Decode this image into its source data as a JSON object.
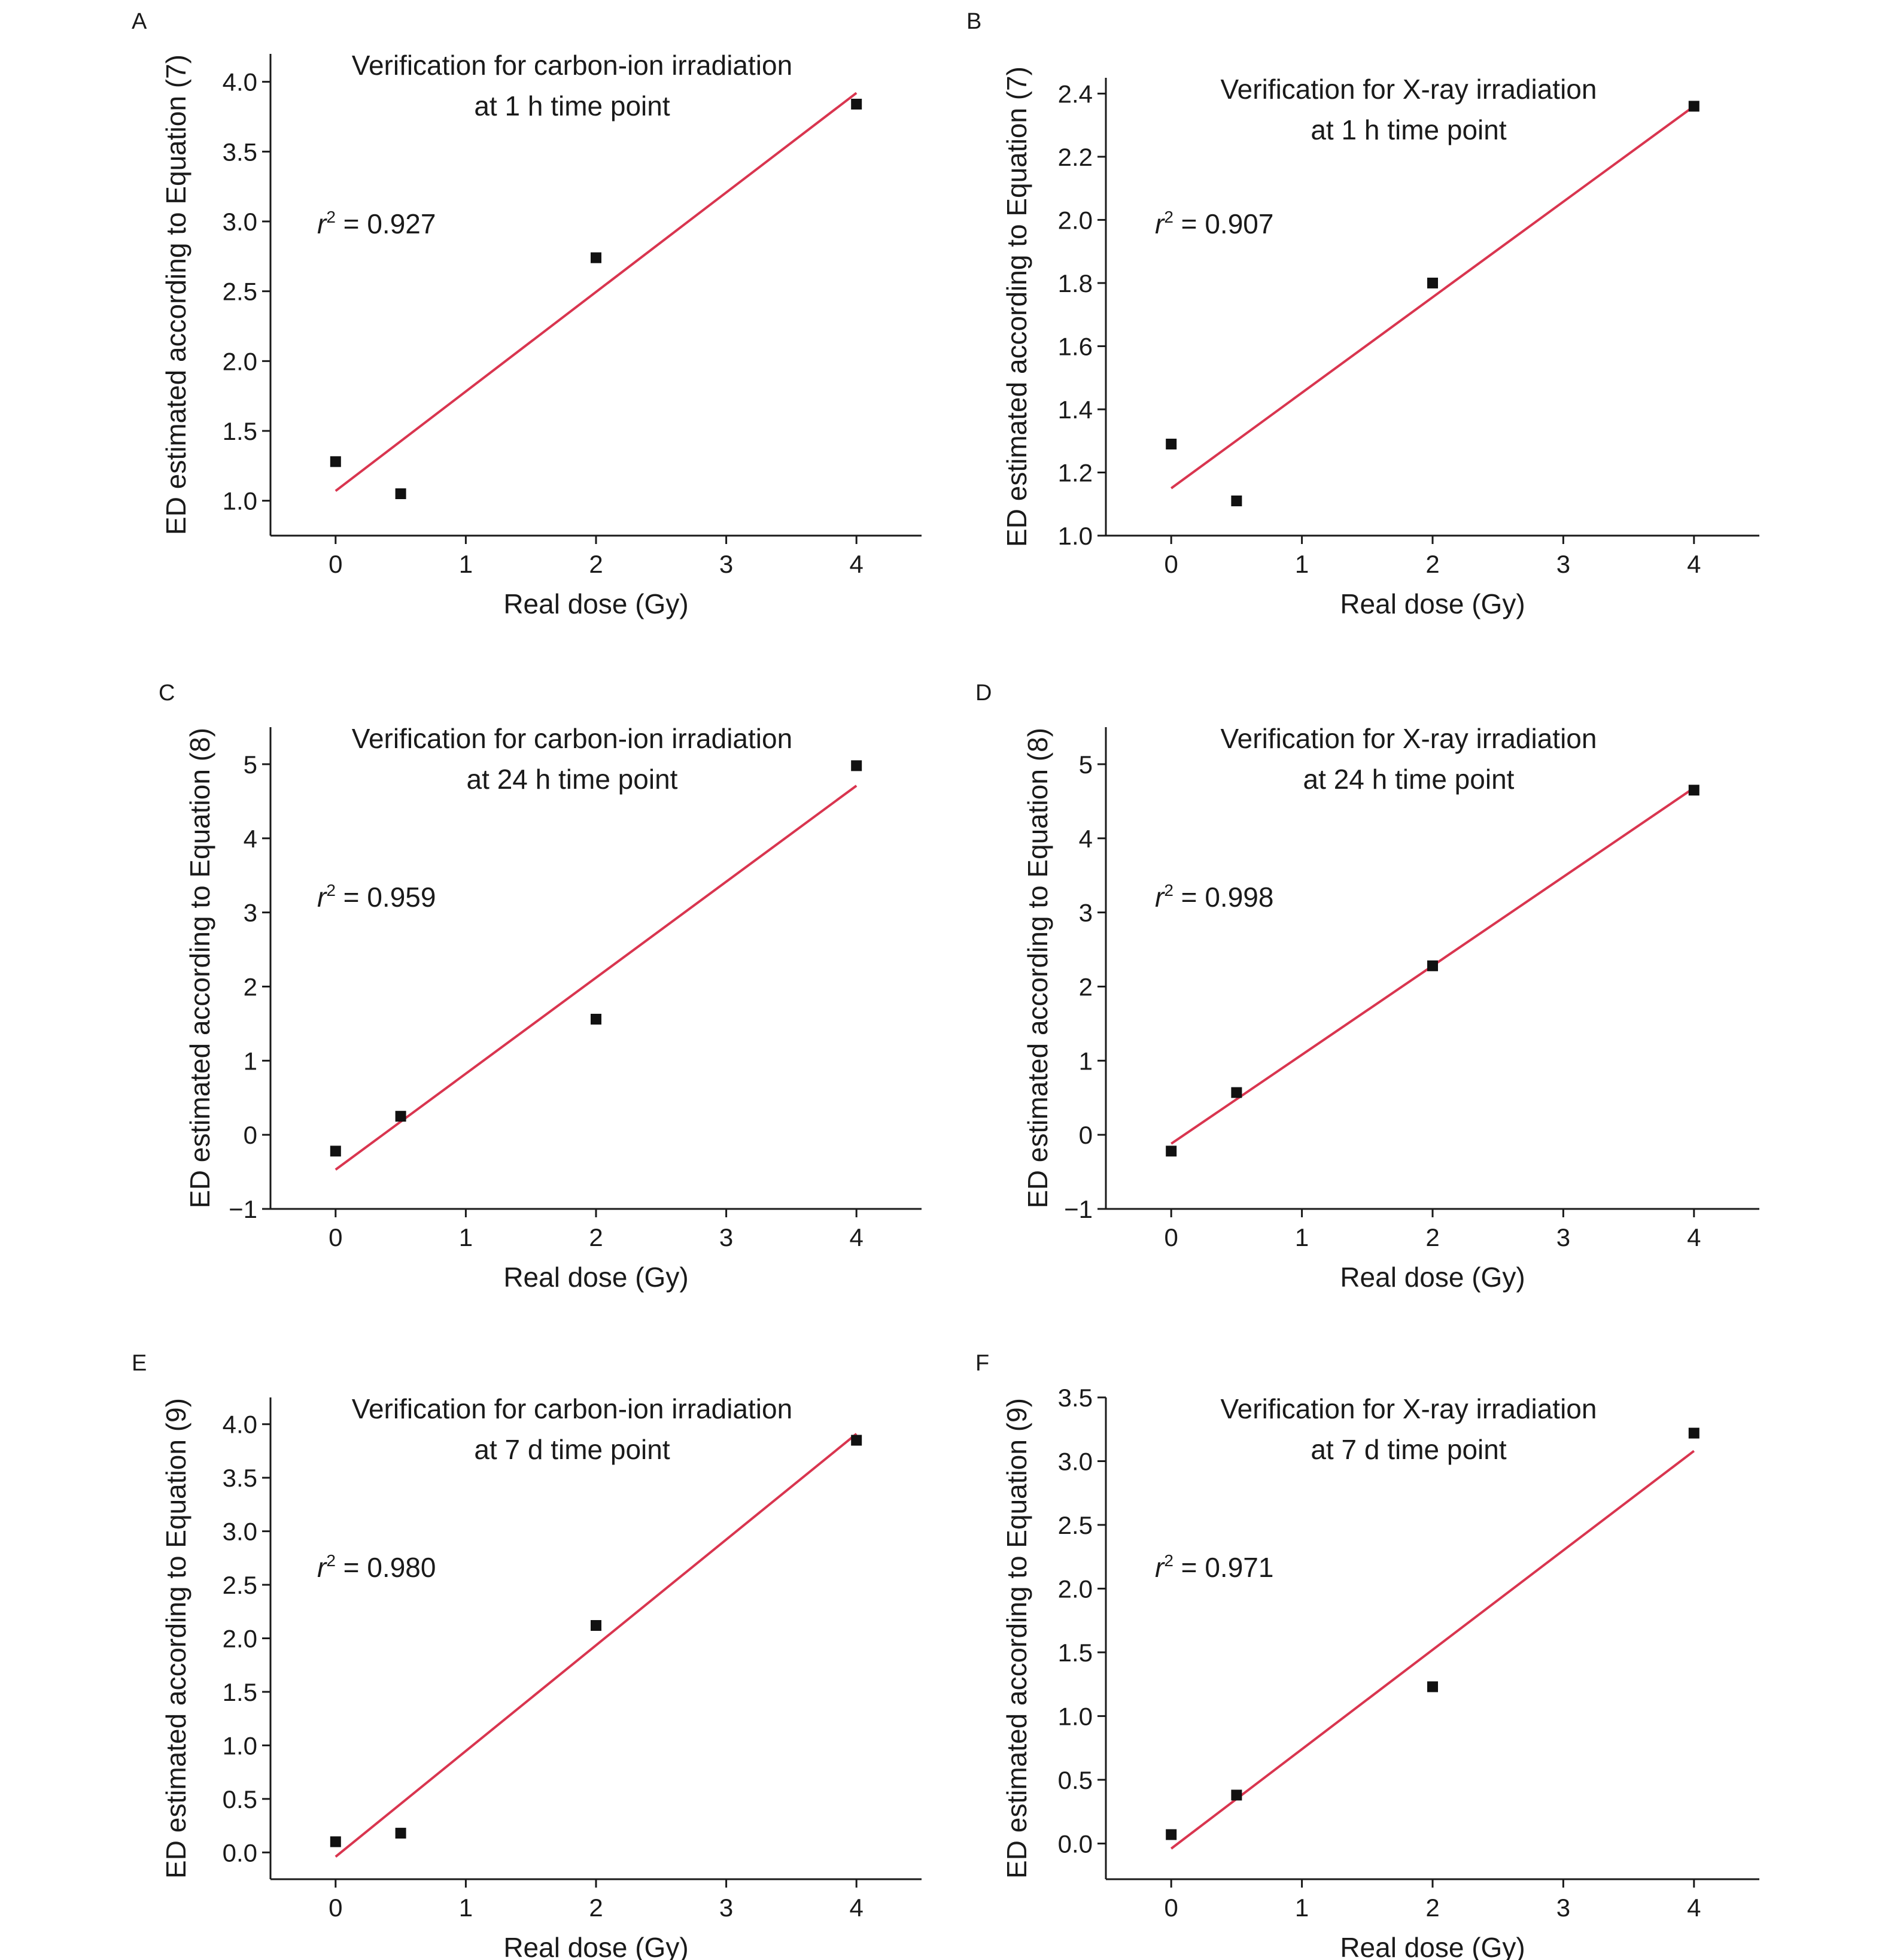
{
  "chart_data": [
    {
      "panel": "A",
      "type": "scatter",
      "title": [
        "Verification for carbon-ion irradiation",
        "at 1 h time point"
      ],
      "annotation": {
        "r_label": "r",
        "superscript": "2",
        "text": " = 0.927"
      },
      "xlabel": "Real dose (Gy)",
      "ylabel": "ED estimated according to Equation (7)",
      "xlim": [
        -0.5,
        4.5
      ],
      "ylim": [
        0.75,
        4.2
      ],
      "xticks": [
        0,
        1,
        2,
        3,
        4
      ],
      "xtick_labels": [
        "0",
        "1",
        "2",
        "3",
        "4"
      ],
      "yticks": [
        1.0,
        1.5,
        2.0,
        2.5,
        3.0,
        3.5,
        4.0
      ],
      "ytick_labels": [
        "1.0",
        "1.5",
        "2.0",
        "2.5",
        "3.0",
        "3.5",
        "4.0"
      ],
      "points": {
        "x": [
          0,
          0.5,
          2,
          4
        ],
        "y": [
          1.28,
          1.05,
          2.74,
          3.84
        ]
      },
      "fit_line": {
        "x": [
          0,
          4
        ],
        "y": [
          1.07,
          3.92
        ]
      },
      "marker_color": "#111111",
      "line_color": "#d9354f"
    },
    {
      "panel": "B",
      "type": "scatter",
      "title": [
        "Verification for X-ray irradiation",
        "at 1 h time point"
      ],
      "annotation": {
        "r_label": "r",
        "superscript": "2",
        "text": " = 0.907"
      },
      "xlabel": "Real dose (Gy)",
      "ylabel": "ED estimated according to Equation (7)",
      "xlim": [
        -0.5,
        4.5
      ],
      "ylim": [
        1.0,
        2.45
      ],
      "xticks": [
        0,
        1,
        2,
        3,
        4
      ],
      "xtick_labels": [
        "0",
        "1",
        "2",
        "3",
        "4"
      ],
      "yticks": [
        1.0,
        1.2,
        1.4,
        1.6,
        1.8,
        2.0,
        2.2,
        2.4
      ],
      "ytick_labels": [
        "1.0",
        "1.2",
        "1.4",
        "1.6",
        "1.8",
        "2.0",
        "2.2",
        "2.4"
      ],
      "points": {
        "x": [
          0,
          0.5,
          2,
          4
        ],
        "y": [
          1.29,
          1.11,
          1.8,
          2.36
        ]
      },
      "fit_line": {
        "x": [
          0,
          4
        ],
        "y": [
          1.15,
          2.36
        ]
      },
      "marker_color": "#111111",
      "line_color": "#d9354f"
    },
    {
      "panel": "C",
      "type": "scatter",
      "title": [
        "Verification for carbon-ion irradiation",
        "at 24 h time point"
      ],
      "annotation": {
        "r_label": "r",
        "superscript": "2",
        "text": " = 0.959"
      },
      "xlabel": "Real dose (Gy)",
      "ylabel": "ED estimated according to Equation (8)",
      "xlim": [
        -0.5,
        4.5
      ],
      "ylim": [
        -1,
        5.5
      ],
      "xticks": [
        0,
        1,
        2,
        3,
        4
      ],
      "xtick_labels": [
        "0",
        "1",
        "2",
        "3",
        "4"
      ],
      "yticks": [
        -1,
        0,
        1,
        2,
        3,
        4,
        5
      ],
      "ytick_labels": [
        "−1",
        "0",
        "1",
        "2",
        "3",
        "4",
        "5"
      ],
      "points": {
        "x": [
          0,
          0.5,
          2,
          4
        ],
        "y": [
          -0.22,
          0.25,
          1.56,
          4.98
        ]
      },
      "fit_line": {
        "x": [
          0,
          4
        ],
        "y": [
          -0.47,
          4.71
        ]
      },
      "marker_color": "#111111",
      "line_color": "#d9354f"
    },
    {
      "panel": "D",
      "type": "scatter",
      "title": [
        "Verification for X-ray irradiation",
        "at 24 h time point"
      ],
      "annotation": {
        "r_label": "r",
        "superscript": "2",
        "text": " = 0.998"
      },
      "xlabel": "Real dose (Gy)",
      "ylabel": "ED estimated according to Equation (8)",
      "xlim": [
        -0.5,
        4.5
      ],
      "ylim": [
        -1,
        5.5
      ],
      "xticks": [
        0,
        1,
        2,
        3,
        4
      ],
      "xtick_labels": [
        "0",
        "1",
        "2",
        "3",
        "4"
      ],
      "yticks": [
        -1,
        0,
        1,
        2,
        3,
        4,
        5
      ],
      "ytick_labels": [
        "−1",
        "0",
        "1",
        "2",
        "3",
        "4",
        "5"
      ],
      "points": {
        "x": [
          0,
          0.5,
          2,
          4
        ],
        "y": [
          -0.22,
          0.57,
          2.28,
          4.65
        ]
      },
      "fit_line": {
        "x": [
          0,
          4
        ],
        "y": [
          -0.12,
          4.68
        ]
      },
      "marker_color": "#111111",
      "line_color": "#d9354f"
    },
    {
      "panel": "E",
      "type": "scatter",
      "title": [
        "Verification for carbon-ion irradiation",
        "at 7 d time point"
      ],
      "annotation": {
        "r_label": "r",
        "superscript": "2",
        "text": " = 0.980"
      },
      "xlabel": "Real dose (Gy)",
      "ylabel": "ED estimated according to Equation (9)",
      "xlim": [
        -0.5,
        4.5
      ],
      "ylim": [
        -0.25,
        4.25
      ],
      "xticks": [
        0,
        1,
        2,
        3,
        4
      ],
      "xtick_labels": [
        "0",
        "1",
        "2",
        "3",
        "4"
      ],
      "yticks": [
        0.0,
        0.5,
        1.0,
        1.5,
        2.0,
        2.5,
        3.0,
        3.5,
        4.0
      ],
      "ytick_labels": [
        "0.0",
        "0.5",
        "1.0",
        "1.5",
        "2.0",
        "2.5",
        "3.0",
        "3.5",
        "4.0"
      ],
      "points": {
        "x": [
          0,
          0.5,
          2,
          4
        ],
        "y": [
          0.1,
          0.18,
          2.12,
          3.85
        ]
      },
      "fit_line": {
        "x": [
          0,
          4
        ],
        "y": [
          -0.04,
          3.91
        ]
      },
      "marker_color": "#111111",
      "line_color": "#d9354f"
    },
    {
      "panel": "F",
      "type": "scatter",
      "title": [
        "Verification for X-ray irradiation",
        "at 7 d time point"
      ],
      "annotation": {
        "r_label": "r",
        "superscript": "2",
        "text": " = 0.971"
      },
      "xlabel": "Real dose (Gy)",
      "ylabel": "ED estimated according to Equation (9)",
      "xlim": [
        -0.5,
        4.5
      ],
      "ylim": [
        -0.28,
        3.5
      ],
      "xticks": [
        0,
        1,
        2,
        3,
        4
      ],
      "xtick_labels": [
        "0",
        "1",
        "2",
        "3",
        "4"
      ],
      "yticks": [
        0.0,
        0.5,
        1.0,
        1.5,
        2.0,
        2.5,
        3.0,
        3.5
      ],
      "ytick_labels": [
        "0.0",
        "0.5",
        "1.0",
        "1.5",
        "2.0",
        "2.5",
        "3.0",
        "3.5"
      ],
      "points": {
        "x": [
          0,
          0.5,
          2,
          4
        ],
        "y": [
          0.07,
          0.38,
          1.23,
          3.22
        ]
      },
      "fit_line": {
        "x": [
          0,
          4
        ],
        "y": [
          -0.04,
          3.08
        ]
      },
      "marker_color": "#111111",
      "line_color": "#d9354f"
    }
  ]
}
